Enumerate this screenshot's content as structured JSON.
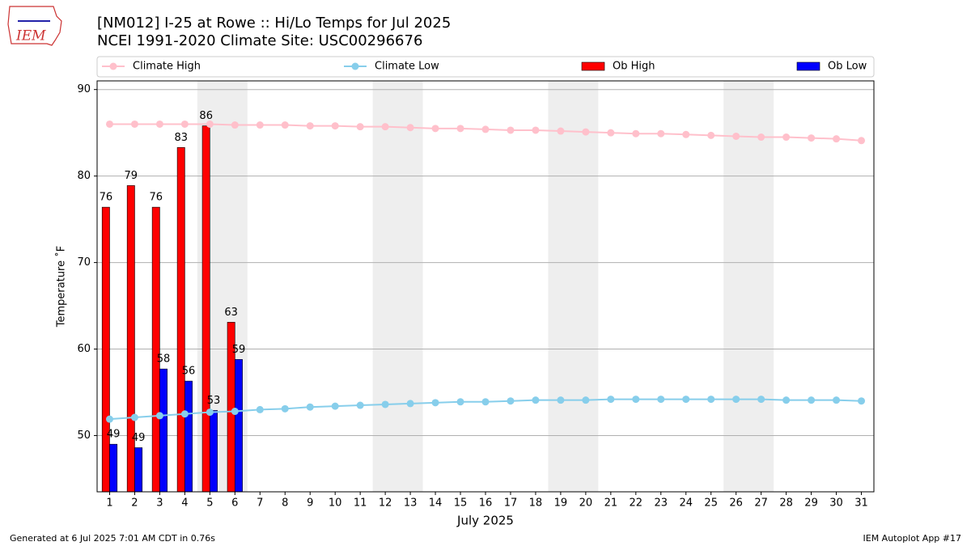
{
  "chart_data": {
    "type": "bar",
    "logo": "IEM",
    "title": "[NM012] I-25 at Rowe  :: Hi/Lo Temps for Jul 2025",
    "subtitle": "NCEI 1991-2020 Climate Site: USC00296676",
    "xlabel": "July 2025",
    "ylabel": "Temperature ˚F",
    "footer_left": "Generated at 6 Jul 2025 7:01 AM CDT in 0.76s",
    "footer_right": "IEM Autoplot App #17",
    "x": [
      1,
      2,
      3,
      4,
      5,
      6,
      7,
      8,
      9,
      10,
      11,
      12,
      13,
      14,
      15,
      16,
      17,
      18,
      19,
      20,
      21,
      22,
      23,
      24,
      25,
      26,
      27,
      28,
      29,
      30,
      31
    ],
    "xlim": [
      0.5,
      31.5
    ],
    "xticks": [
      1,
      2,
      3,
      4,
      5,
      6,
      7,
      8,
      9,
      10,
      11,
      12,
      13,
      14,
      15,
      16,
      17,
      18,
      19,
      20,
      21,
      22,
      23,
      24,
      25,
      26,
      27,
      28,
      29,
      30,
      31
    ],
    "ylim": [
      43.5,
      91
    ],
    "yticks": [
      50,
      60,
      70,
      80,
      90
    ],
    "grid": true,
    "shaded_ranges": [
      [
        4.5,
        6.5
      ],
      [
        11.5,
        13.5
      ],
      [
        18.5,
        20.5
      ],
      [
        25.5,
        27.5
      ]
    ],
    "series": [
      {
        "name": "Climate High",
        "type": "line",
        "color": "#ffc0cb",
        "values": [
          86.0,
          86.0,
          86.0,
          86.0,
          86.0,
          85.9,
          85.9,
          85.9,
          85.8,
          85.8,
          85.7,
          85.7,
          85.6,
          85.5,
          85.5,
          85.4,
          85.3,
          85.3,
          85.2,
          85.1,
          85.0,
          84.9,
          84.9,
          84.8,
          84.7,
          84.6,
          84.5,
          84.5,
          84.4,
          84.3,
          84.1
        ]
      },
      {
        "name": "Climate Low",
        "type": "line",
        "color": "#87ceeb",
        "values": [
          51.9,
          52.1,
          52.3,
          52.5,
          52.7,
          52.8,
          53.0,
          53.1,
          53.3,
          53.4,
          53.5,
          53.6,
          53.7,
          53.8,
          53.9,
          53.9,
          54.0,
          54.1,
          54.1,
          54.1,
          54.2,
          54.2,
          54.2,
          54.2,
          54.2,
          54.2,
          54.2,
          54.1,
          54.1,
          54.1,
          54.0
        ]
      },
      {
        "name": "Ob High",
        "type": "bar",
        "color": "#ff0000",
        "values": [
          76.4,
          78.9,
          76.4,
          83.3,
          85.8,
          63.1,
          null,
          null,
          null,
          null,
          null,
          null,
          null,
          null,
          null,
          null,
          null,
          null,
          null,
          null,
          null,
          null,
          null,
          null,
          null,
          null,
          null,
          null,
          null,
          null,
          null
        ],
        "value_labels": [
          "76",
          "79",
          "76",
          "83",
          "86",
          "63",
          null,
          null,
          null,
          null,
          null,
          null,
          null,
          null,
          null,
          null,
          null,
          null,
          null,
          null,
          null,
          null,
          null,
          null,
          null,
          null,
          null,
          null,
          null,
          null,
          null
        ]
      },
      {
        "name": "Ob Low",
        "type": "bar",
        "color": "#0000ff",
        "values": [
          49.0,
          48.6,
          57.7,
          56.3,
          52.9,
          58.8,
          null,
          null,
          null,
          null,
          null,
          null,
          null,
          null,
          null,
          null,
          null,
          null,
          null,
          null,
          null,
          null,
          null,
          null,
          null,
          null,
          null,
          null,
          null,
          null,
          null
        ],
        "value_labels": [
          "49",
          "49",
          "58",
          "56",
          "53",
          "59",
          null,
          null,
          null,
          null,
          null,
          null,
          null,
          null,
          null,
          null,
          null,
          null,
          null,
          null,
          null,
          null,
          null,
          null,
          null,
          null,
          null,
          null,
          null,
          null,
          null
        ]
      }
    ]
  }
}
